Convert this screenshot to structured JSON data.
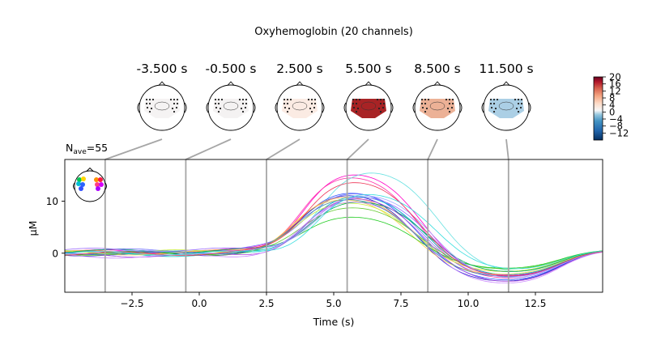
{
  "chart_data": {
    "type": "line",
    "title": "Oxyhemoglobin (20 channels)",
    "nave_prefix": "N",
    "nave_sub": "ave",
    "nave_value": "=55",
    "xlabel": "Time (s)",
    "ylabel": "µM",
    "xlim": [
      -5.0,
      15.0
    ],
    "ylim": [
      -7.5,
      18.0
    ],
    "xticks": [
      -2.5,
      0.0,
      2.5,
      5.0,
      7.5,
      10.0,
      12.5
    ],
    "xtick_labels": [
      "−2.5",
      "0.0",
      "2.5",
      "5.0",
      "7.5",
      "10.0",
      "12.5"
    ],
    "yticks": [
      0,
      10
    ],
    "ytick_labels": [
      "0",
      "10"
    ],
    "grid": false,
    "topomap_times": [
      -3.5,
      -0.5,
      2.5,
      5.5,
      8.5,
      11.5
    ],
    "topomap_labels": [
      "-3.500 s",
      "-0.500 s",
      "2.500 s",
      "5.500 s",
      "8.500 s",
      "11.500 s"
    ],
    "topomap_fill": [
      "#f5f3f3",
      "#f4f2f2",
      "#fbebe3",
      "#a82325",
      "#ecb196",
      "#abcfe5"
    ],
    "colorbar": {
      "ticks": [
        20,
        16,
        12,
        8,
        4,
        0,
        -4,
        -8,
        -12
      ],
      "tick_labels": [
        "20",
        "16",
        "12",
        "8",
        "4",
        "0",
        "−4",
        "−8",
        "−12"
      ],
      "range": [
        -16,
        20
      ],
      "colormap": "RdBu_r"
    },
    "series": [
      {
        "color": "#ff00c8",
        "peak_t": 5.7,
        "peak": 16.8,
        "base": 0.3,
        "trough": -5.0
      },
      {
        "color": "#ff33aa",
        "peak_t": 5.6,
        "peak": 16.2,
        "base": 0.1,
        "trough": -5.5
      },
      {
        "color": "#66e0e0",
        "peak_t": 6.3,
        "peak": 17.2,
        "base": 0.2,
        "trough": -4.5
      },
      {
        "color": "#3355ff",
        "peak_t": 5.6,
        "peak": 13.0,
        "base": 0.0,
        "trough": -5.8
      },
      {
        "color": "#2222cc",
        "peak_t": 5.5,
        "peak": 12.5,
        "base": -0.2,
        "trough": -6.0
      },
      {
        "color": "#7777ff",
        "peak_t": 5.7,
        "peak": 12.8,
        "base": 0.5,
        "trough": -5.2
      },
      {
        "color": "#00bfbf",
        "peak_t": 5.8,
        "peak": 12.2,
        "base": -0.3,
        "trough": -4.8
      },
      {
        "color": "#ff9944",
        "peak_t": 5.4,
        "peak": 12.0,
        "base": 0.2,
        "trough": -4.0
      },
      {
        "color": "#ffd24a",
        "peak_t": 5.3,
        "peak": 11.5,
        "base": 0.0,
        "trough": -4.5
      },
      {
        "color": "#ccee44",
        "peak_t": 5.5,
        "peak": 10.8,
        "base": 0.3,
        "trough": -4.0
      },
      {
        "color": "#66cc33",
        "peak_t": 5.6,
        "peak": 9.8,
        "base": -0.1,
        "trough": -3.5
      },
      {
        "color": "#22cc22",
        "peak_t": 5.6,
        "peak": 7.8,
        "base": 0.0,
        "trough": -3.3
      },
      {
        "color": "#00aa55",
        "peak_t": 5.9,
        "peak": 11.0,
        "base": 0.4,
        "trough": -4.2
      },
      {
        "color": "#9966ff",
        "peak_t": 6.0,
        "peak": 12.0,
        "base": 0.6,
        "trough": -5.3
      },
      {
        "color": "#aa44dd",
        "peak_t": 5.8,
        "peak": 11.8,
        "base": -0.4,
        "trough": -6.2
      },
      {
        "color": "#cc88ff",
        "peak_t": 5.7,
        "peak": 11.2,
        "base": -0.6,
        "trough": -6.5
      },
      {
        "color": "#4488aa",
        "peak_t": 5.5,
        "peak": 11.6,
        "base": 0.1,
        "trough": -5.0
      },
      {
        "color": "#a0a8ff",
        "peak_t": 6.1,
        "peak": 12.4,
        "base": 0.2,
        "trough": -5.6
      },
      {
        "color": "#ee3355",
        "peak_t": 5.7,
        "peak": 15.2,
        "base": -0.1,
        "trough": -5.1
      },
      {
        "color": "#33dddd",
        "peak_t": 6.2,
        "peak": 12.6,
        "base": 0.0,
        "trough": -3.8
      }
    ]
  }
}
